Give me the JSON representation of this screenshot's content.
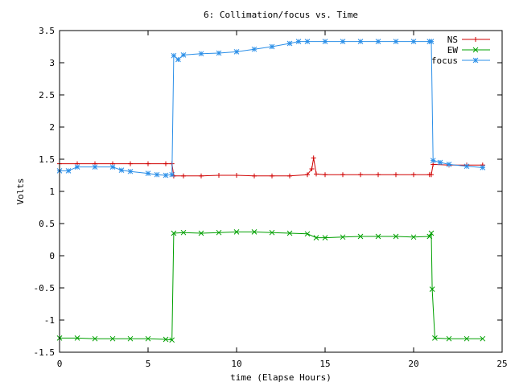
{
  "chart_data": {
    "type": "line",
    "title": "6: Collimation/focus vs. Time",
    "xlabel": "time (Elapse Hours)",
    "ylabel": "Volts",
    "xlim": [
      0,
      25
    ],
    "ylim": [
      -1.5,
      3.5
    ],
    "x_ticks": [
      0,
      5,
      10,
      15,
      20,
      25
    ],
    "x_tick_labels": [
      "0",
      "5",
      "10",
      "15",
      "20",
      "25"
    ],
    "y_ticks": [
      -1.5,
      -1,
      -0.5,
      0,
      0.5,
      1,
      1.5,
      2,
      2.5,
      3,
      3.5
    ],
    "y_tick_labels": [
      "-1.5",
      "-1",
      "-0.5",
      "0",
      "0.5",
      "1",
      "1.5",
      "2",
      "2.5",
      "3",
      "3.5"
    ],
    "grid": false,
    "legend_position": "top-right",
    "series": [
      {
        "name": "NS",
        "color": "#d00000",
        "marker": "plus",
        "x": [
          0.0,
          1.0,
          2.0,
          3.0,
          4.0,
          5.0,
          6.0,
          6.35,
          6.45,
          7.0,
          8.0,
          9.0,
          10.0,
          11.0,
          12.0,
          13.0,
          14.0,
          14.25,
          14.35,
          14.5,
          15.0,
          16.0,
          17.0,
          18.0,
          19.0,
          20.0,
          20.9,
          21.0,
          21.1,
          22.0,
          23.0,
          23.9
        ],
        "y": [
          1.43,
          1.43,
          1.43,
          1.43,
          1.43,
          1.43,
          1.43,
          1.43,
          1.24,
          1.24,
          1.24,
          1.25,
          1.25,
          1.24,
          1.24,
          1.24,
          1.26,
          1.35,
          1.52,
          1.27,
          1.26,
          1.26,
          1.26,
          1.26,
          1.26,
          1.26,
          1.26,
          1.26,
          1.42,
          1.41,
          1.41,
          1.41
        ]
      },
      {
        "name": "EW",
        "color": "#00a000",
        "marker": "cross",
        "x": [
          0.0,
          1.0,
          2.0,
          3.0,
          4.0,
          5.0,
          6.0,
          6.35,
          6.45,
          7.0,
          8.0,
          9.0,
          10.0,
          11.0,
          12.0,
          13.0,
          14.0,
          14.5,
          15.0,
          16.0,
          17.0,
          18.0,
          19.0,
          20.0,
          20.9,
          21.0,
          21.05,
          21.2,
          22.0,
          23.0,
          23.9
        ],
        "y": [
          -1.28,
          -1.28,
          -1.29,
          -1.29,
          -1.29,
          -1.29,
          -1.3,
          -1.31,
          0.35,
          0.36,
          0.35,
          0.36,
          0.37,
          0.37,
          0.36,
          0.35,
          0.34,
          0.28,
          0.28,
          0.29,
          0.3,
          0.3,
          0.3,
          0.29,
          0.3,
          0.35,
          -0.52,
          -1.28,
          -1.29,
          -1.29,
          -1.29
        ]
      },
      {
        "name": "focus",
        "color": "#2b8fe8",
        "marker": "star",
        "x": [
          0.0,
          0.5,
          1.0,
          2.0,
          3.0,
          3.5,
          4.0,
          5.0,
          5.5,
          6.0,
          6.35,
          6.45,
          6.7,
          7.0,
          8.0,
          9.0,
          10.0,
          11.0,
          12.0,
          13.0,
          13.5,
          14.0,
          15.0,
          16.0,
          17.0,
          18.0,
          19.0,
          20.0,
          20.9,
          21.0,
          21.1,
          21.5,
          22.0,
          23.0,
          23.9
        ],
        "y": [
          1.32,
          1.32,
          1.38,
          1.38,
          1.38,
          1.33,
          1.31,
          1.28,
          1.26,
          1.25,
          1.26,
          3.11,
          3.05,
          3.12,
          3.14,
          3.15,
          3.17,
          3.21,
          3.25,
          3.3,
          3.33,
          3.33,
          3.33,
          3.33,
          3.33,
          3.33,
          3.33,
          3.33,
          3.33,
          3.33,
          1.48,
          1.45,
          1.42,
          1.39,
          1.37
        ]
      }
    ]
  }
}
